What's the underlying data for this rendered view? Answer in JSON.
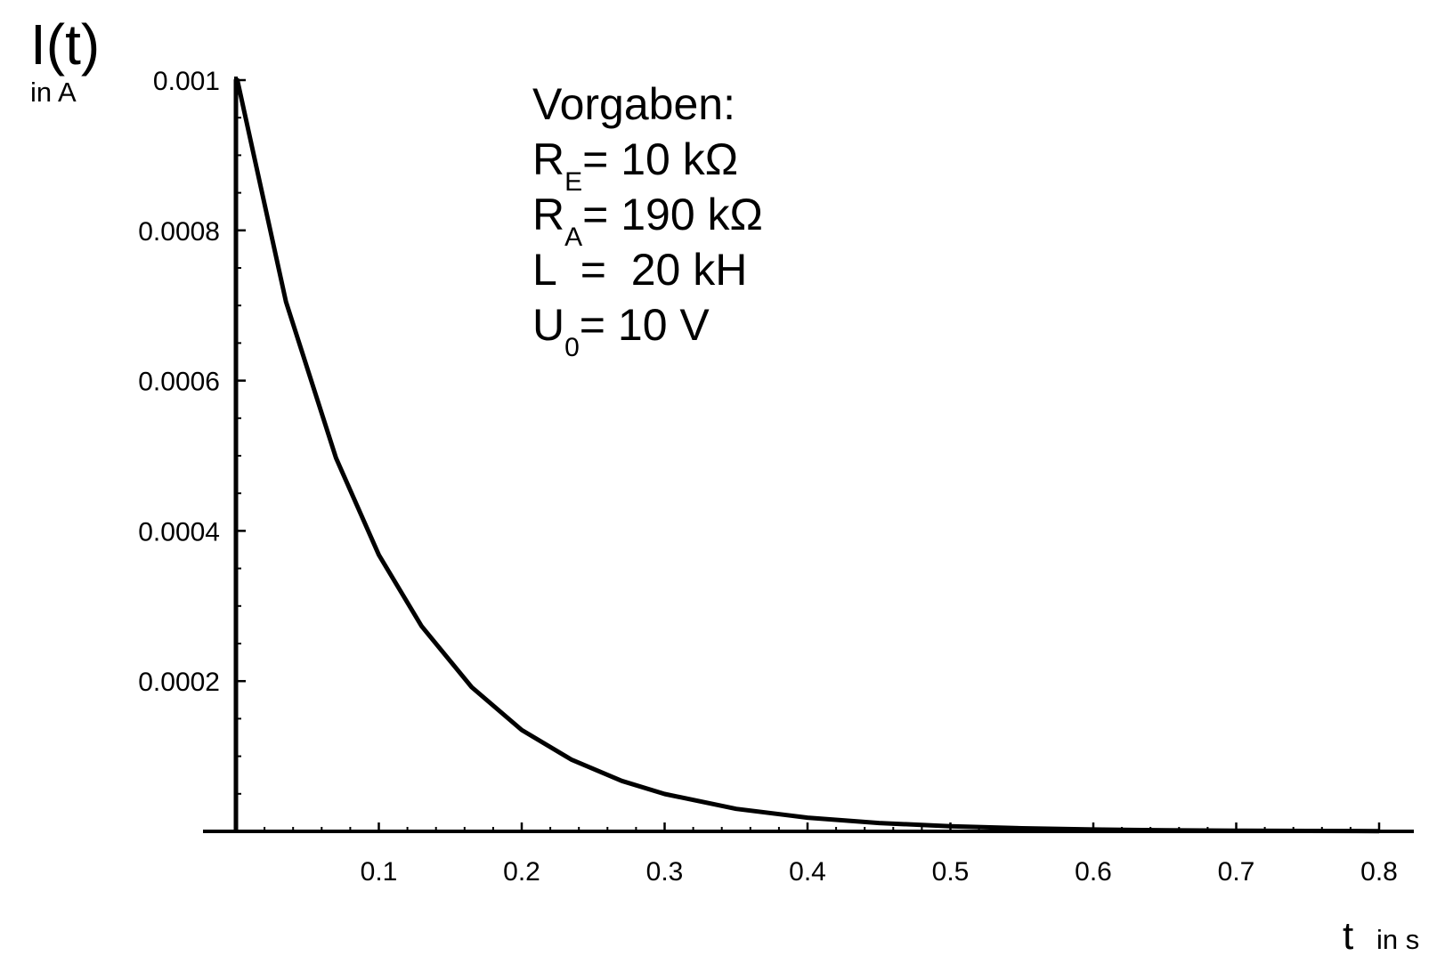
{
  "chart_data": {
    "type": "line",
    "title": "",
    "ylabel": "I(t)",
    "ylabel_unit": "in A",
    "xlabel": "t",
    "xlabel_unit": "in s",
    "xlim": [
      0,
      0.82
    ],
    "ylim": [
      0,
      0.001
    ],
    "xticks": [
      "0.1",
      "0.2",
      "0.3",
      "0.4",
      "0.5",
      "0.6",
      "0.7",
      "0.8"
    ],
    "yticks": [
      "0.0002",
      "0.0004",
      "0.0006",
      "0.0008",
      "0.001"
    ],
    "grid": false,
    "series": [
      {
        "x": [
          0,
          0,
          0.001,
          0.035,
          0.07,
          0.1,
          0.13,
          0.165,
          0.2,
          0.235,
          0.27,
          0.3,
          0.35,
          0.4,
          0.45,
          0.5,
          0.55,
          0.6,
          0.65,
          0.7,
          0.75,
          0.8
        ],
        "values": [
          0,
          0.001,
          0.001,
          0.000705,
          0.000497,
          0.000368,
          0.000273,
          0.000192,
          0.000135,
          9.53e-05,
          6.72e-05,
          4.98e-05,
          3e-05,
          1.83e-05,
          1.11e-05,
          6.7e-06,
          4.1e-06,
          2.5e-06,
          1.5e-06,
          9e-07,
          6e-07,
          3e-07
        ]
      }
    ],
    "annotations": {
      "title": "Vorgaben:",
      "lines": [
        {
          "sym": "R",
          "sub": "E",
          "rest": "= 10 kΩ"
        },
        {
          "sym": "R",
          "sub": "A",
          "rest": "= 190 kΩ"
        },
        {
          "sym": "L",
          "sub": "",
          "rest": "  =  20 kH"
        },
        {
          "sym": "U",
          "sub": "0",
          "rest": "= 10 V"
        }
      ]
    }
  }
}
